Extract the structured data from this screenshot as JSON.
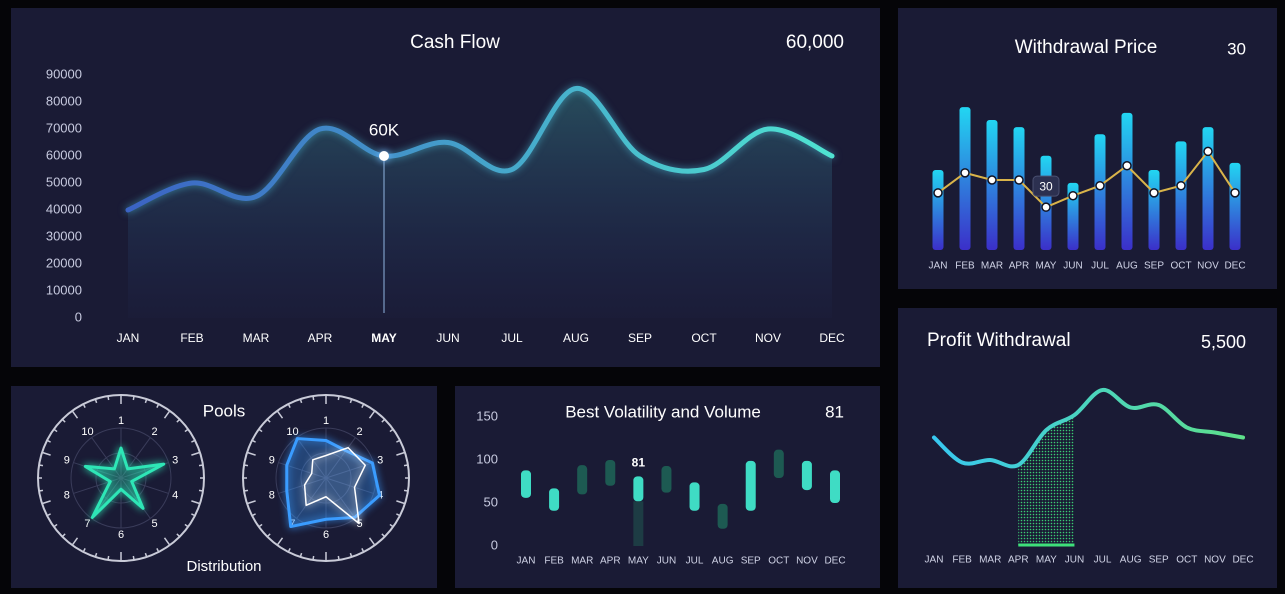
{
  "chart_data": [
    {
      "type": "area",
      "title": "Cash Flow",
      "headline": "60,000",
      "categories": [
        "JAN",
        "FEB",
        "MAR",
        "APR",
        "MAY",
        "JUN",
        "JUL",
        "AUG",
        "SEP",
        "OCT",
        "NOV",
        "DEC"
      ],
      "values": [
        40000,
        50000,
        45000,
        70000,
        60000,
        65000,
        55000,
        85000,
        60000,
        55000,
        70000,
        60000
      ],
      "value_labels": [
        null,
        null,
        null,
        null,
        "60K",
        null,
        null,
        null,
        null,
        null,
        null,
        null
      ],
      "highlight_index": 4,
      "gradient": [
        "#3b63c4",
        "#4fe3d1"
      ],
      "ylim": [
        0,
        90000
      ],
      "yticks": [
        0,
        10000,
        20000,
        30000,
        40000,
        50000,
        60000,
        70000,
        80000,
        90000
      ]
    },
    {
      "type": "combo",
      "title": "Withdrawal Price",
      "headline": "30",
      "categories": [
        "JAN",
        "FEB",
        "MAR",
        "APR",
        "MAY",
        "JUN",
        "JUL",
        "AUG",
        "SEP",
        "OCT",
        "NOV",
        "DEC"
      ],
      "series": [
        {
          "kind": "bar",
          "gradient": [
            "#22d6f2",
            "#3b2fc9"
          ],
          "values": [
            56,
            100,
            91,
            86,
            66,
            47,
            81,
            96,
            56,
            76,
            86,
            61
          ]
        },
        {
          "kind": "line",
          "color": "#d9b44a",
          "values": [
            40,
            54,
            49,
            49,
            30,
            38,
            45,
            59,
            40,
            45,
            69,
            40
          ]
        }
      ],
      "labeled_index": 4,
      "ylim": [
        0,
        105
      ]
    },
    {
      "type": "radar",
      "title": "Pools",
      "subtitle": "Distribution",
      "axes": [
        1,
        2,
        3,
        4,
        5,
        6,
        7,
        8,
        9,
        10
      ],
      "rlim": [
        0,
        10
      ],
      "radars": [
        [
          {
            "color": "#2ee6b6",
            "values": [
              4,
              1.5,
              6,
              1.5,
              5,
              1.5,
              6.5,
              1.5,
              5,
              1.5
            ]
          }
        ],
        [
          {
            "color": "#3a9cff",
            "values": [
              5,
              4.5,
              6.5,
              7.5,
              6.5,
              5.5,
              8,
              5.5,
              5.5,
              6.5
            ]
          },
          {
            "color": "#ffffff",
            "values": [
              3,
              5,
              5.5,
              4,
              7.5,
              2.5,
              4.5,
              3,
              2,
              3
            ]
          }
        ]
      ]
    },
    {
      "type": "range-bar",
      "title": "Best Volatility and Volume",
      "headline": "81",
      "categories": [
        "JAN",
        "FEB",
        "MAR",
        "APR",
        "MAY",
        "JUN",
        "JUL",
        "AUG",
        "SEP",
        "OCT",
        "NOV",
        "DEC"
      ],
      "low": [
        56,
        41,
        60,
        70,
        52,
        62,
        41,
        20,
        41,
        79,
        65,
        50
      ],
      "high": [
        88,
        67,
        94,
        100,
        81,
        93,
        74,
        49,
        99,
        112,
        99,
        88
      ],
      "colors": [
        "#3fdcc4",
        "#3fdcc4",
        "#1d5a52",
        "#1d5a52",
        "#3fdcc4",
        "#1d5a52",
        "#3fdcc4",
        "#1d5a52",
        "#3fdcc4",
        "#1d5a52",
        "#3fdcc4",
        "#3fdcc4"
      ],
      "labeled_index": 4,
      "ylim": [
        0,
        150
      ],
      "yticks": [
        0,
        50,
        100,
        150
      ]
    },
    {
      "type": "line",
      "title": "Profit Withdrawal",
      "headline": "5,500",
      "categories": [
        "JAN",
        "FEB",
        "MAR",
        "APR",
        "MAY",
        "JUN",
        "JUL",
        "AUG",
        "SEP",
        "OCT",
        "NOV",
        "DEC"
      ],
      "values": [
        4300,
        3300,
        3400,
        3200,
        4600,
        5200,
        6200,
        5500,
        5600,
        4700,
        4500,
        4300
      ],
      "gradient": [
        "#38c8f0",
        "#5ee08a"
      ],
      "highlight_range": [
        3,
        5
      ],
      "highlight_color": "#3ee07a",
      "ylim": [
        0,
        6600
      ]
    }
  ]
}
